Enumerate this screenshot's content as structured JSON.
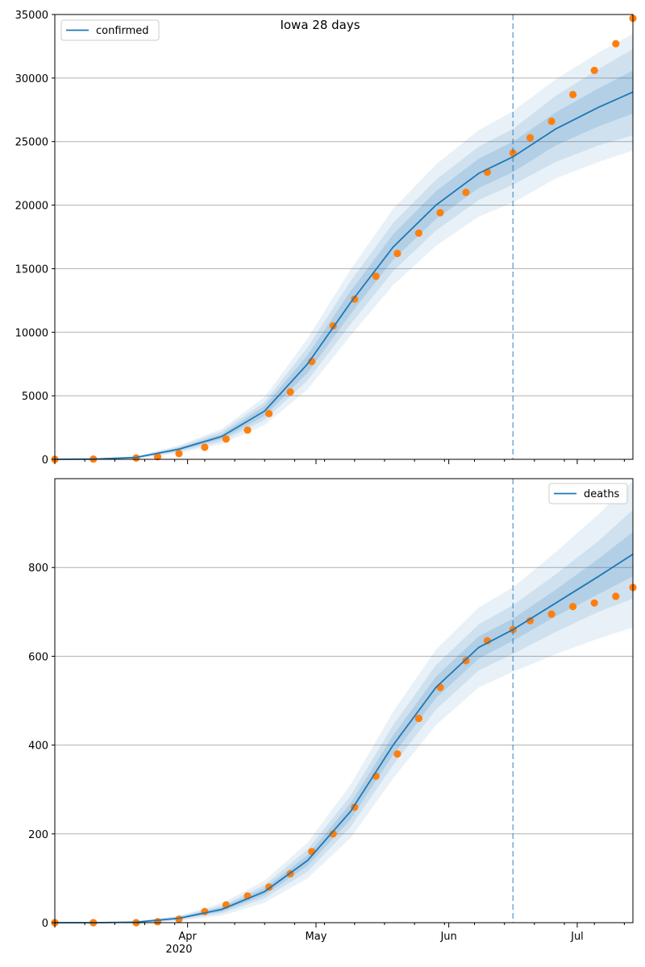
{
  "figure": {
    "title": "Iowa 28 days"
  },
  "colors": {
    "model": "#1f77b4",
    "observed": "#ff7f0e",
    "band": "#1f77b4",
    "grid": "#b0b0b0"
  },
  "x_axis": {
    "month_ticks": [
      "Apr",
      "May",
      "Jun",
      "Jul"
    ],
    "year_label": "2020"
  },
  "chart_data": [
    {
      "type": "line",
      "title": "Iowa 28 days",
      "legend": {
        "label": "confirmed",
        "placement": "top-left"
      },
      "xlim": [
        "2020-03-01",
        "2020-07-14"
      ],
      "ylim": [
        0,
        35000
      ],
      "y_ticks": [
        0,
        5000,
        10000,
        15000,
        20000,
        25000,
        30000,
        35000
      ],
      "grid": "horizontal",
      "forecast_start": "2020-06-16",
      "model": {
        "x": [
          "2020-03-01",
          "2020-03-10",
          "2020-03-20",
          "2020-03-30",
          "2020-04-09",
          "2020-04-19",
          "2020-04-29",
          "2020-05-09",
          "2020-05-19",
          "2020-05-29",
          "2020-06-08",
          "2020-06-16",
          "2020-06-26",
          "2020-07-06",
          "2020-07-14"
        ],
        "y": [
          0,
          20,
          150,
          800,
          1800,
          3800,
          7500,
          12300,
          16700,
          20000,
          22500,
          23800,
          26000,
          27700,
          28900
        ],
        "band_inner_halfwidth": [
          0,
          5,
          30,
          100,
          200,
          400,
          700,
          900,
          1000,
          1100,
          1150,
          1200,
          1300,
          1500,
          1700
        ],
        "band_mid_halfwidth": [
          0,
          10,
          60,
          200,
          400,
          700,
          1300,
          1700,
          1900,
          2000,
          2100,
          2200,
          2600,
          3000,
          3400
        ],
        "band_outer_halfwidth": [
          0,
          15,
          100,
          300,
          600,
          1100,
          2000,
          2600,
          3000,
          3200,
          3400,
          3600,
          3900,
          4300,
          4600
        ]
      },
      "observed": {
        "x": [
          "2020-03-01",
          "2020-03-10",
          "2020-03-20",
          "2020-03-25",
          "2020-03-30",
          "2020-04-05",
          "2020-04-10",
          "2020-04-15",
          "2020-04-20",
          "2020-04-25",
          "2020-04-30",
          "2020-05-05",
          "2020-05-10",
          "2020-05-15",
          "2020-05-20",
          "2020-05-25",
          "2020-05-30",
          "2020-06-05",
          "2020-06-10",
          "2020-06-16",
          "2020-06-20",
          "2020-06-25",
          "2020-06-30",
          "2020-07-05",
          "2020-07-10",
          "2020-07-14"
        ],
        "y": [
          0,
          20,
          100,
          200,
          450,
          950,
          1600,
          2300,
          3600,
          5300,
          7700,
          10500,
          12600,
          14400,
          16200,
          17800,
          19400,
          21000,
          22600,
          24100,
          25300,
          26600,
          28700,
          30600,
          32700,
          34700
        ]
      }
    },
    {
      "type": "line",
      "legend": {
        "label": "deaths",
        "placement": "top-right"
      },
      "xlim": [
        "2020-03-01",
        "2020-07-14"
      ],
      "ylim": [
        0,
        1000
      ],
      "y_ticks": [
        0,
        200,
        400,
        600,
        800
      ],
      "grid": "horizontal",
      "forecast_start": "2020-06-16",
      "model": {
        "x": [
          "2020-03-01",
          "2020-03-10",
          "2020-03-20",
          "2020-03-30",
          "2020-04-09",
          "2020-04-19",
          "2020-04-29",
          "2020-05-09",
          "2020-05-19",
          "2020-05-29",
          "2020-06-08",
          "2020-06-16",
          "2020-06-26",
          "2020-07-06",
          "2020-07-14"
        ],
        "y": [
          0,
          0,
          1,
          10,
          30,
          70,
          140,
          250,
          400,
          530,
          620,
          660,
          720,
          780,
          830
        ],
        "band_inner_halfwidth": [
          0,
          0,
          1,
          2,
          5,
          8,
          12,
          18,
          22,
          24,
          25,
          25,
          30,
          40,
          50
        ],
        "band_mid_halfwidth": [
          0,
          0,
          2,
          4,
          9,
          15,
          25,
          35,
          45,
          50,
          52,
          55,
          65,
          80,
          100
        ],
        "band_outer_halfwidth": [
          0,
          0,
          3,
          6,
          14,
          25,
          40,
          60,
          75,
          85,
          90,
          95,
          115,
          140,
          165
        ]
      },
      "observed": {
        "x": [
          "2020-03-01",
          "2020-03-10",
          "2020-03-20",
          "2020-03-25",
          "2020-03-30",
          "2020-04-05",
          "2020-04-10",
          "2020-04-15",
          "2020-04-20",
          "2020-04-25",
          "2020-04-30",
          "2020-05-05",
          "2020-05-10",
          "2020-05-15",
          "2020-05-20",
          "2020-05-25",
          "2020-05-30",
          "2020-06-05",
          "2020-06-10",
          "2020-06-16",
          "2020-06-20",
          "2020-06-25",
          "2020-06-30",
          "2020-07-05",
          "2020-07-10",
          "2020-07-14"
        ],
        "y": [
          0,
          0,
          0,
          2,
          8,
          25,
          40,
          60,
          80,
          110,
          160,
          200,
          260,
          330,
          380,
          460,
          530,
          590,
          635,
          660,
          680,
          695,
          712,
          720,
          735,
          755
        ]
      }
    }
  ]
}
